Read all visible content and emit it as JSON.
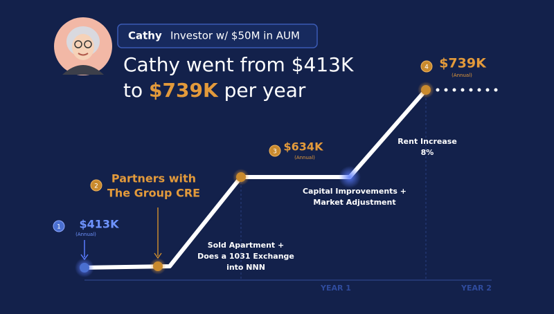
{
  "header": {
    "name": "Cathy",
    "role": "Investor w/ $50M in AUM",
    "headline_line1": "Cathy went from $413K",
    "headline_line2_start": "to",
    "headline_line2_highlight": "$739K",
    "headline_line2_end": "per year"
  },
  "milestones": [
    {
      "number": "1",
      "value": "$413K",
      "note": "(Annual)"
    },
    {
      "number": "2",
      "label_lines": [
        "Partners with",
        "The Group CRE"
      ]
    },
    {
      "number": "3",
      "value": "$634K",
      "note": "(Annual)"
    },
    {
      "number": "4",
      "value": "$739K",
      "note": "(Annual)"
    }
  ],
  "events": [
    {
      "lines": [
        "Sold Apartment +",
        "Does a 1031 Exchange",
        "into NNN"
      ]
    },
    {
      "lines": [
        "Capital Improvements +",
        "Market Adjustment"
      ]
    },
    {
      "lines": [
        "Rent Increase",
        "8%"
      ]
    }
  ],
  "axis_labels": [
    "YEAR 1",
    "YEAR 2"
  ]
}
